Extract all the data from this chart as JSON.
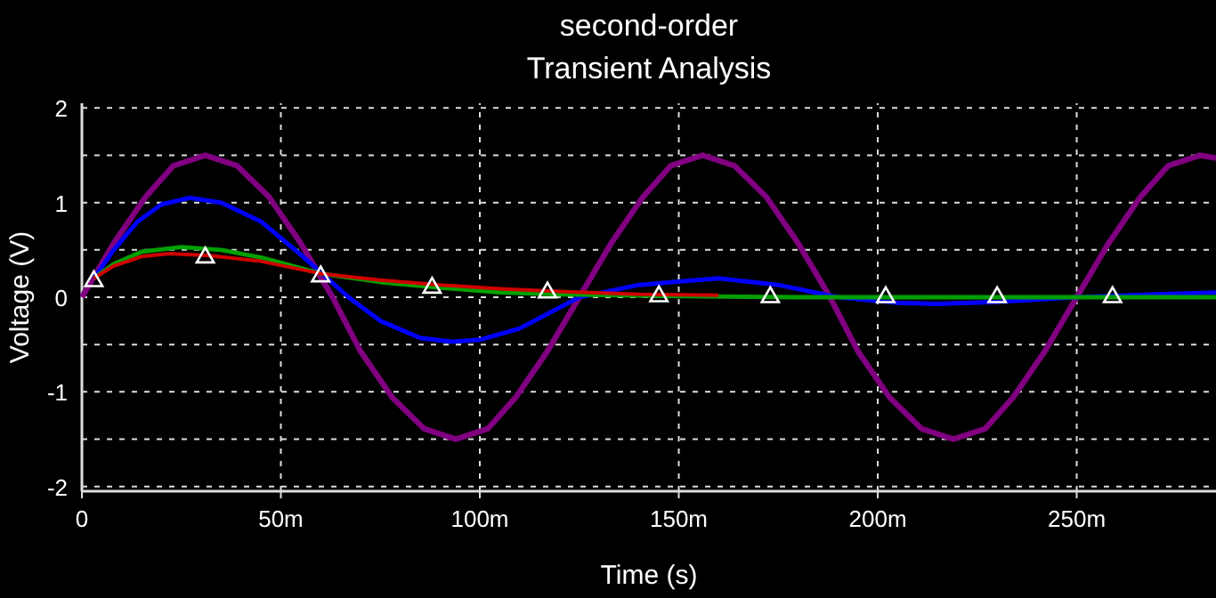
{
  "chart_data": {
    "type": "line",
    "title": "second-order",
    "subtitle": "Transient Analysis",
    "xlabel": "Time (s)",
    "ylabel": "Voltage (V)",
    "xlim": [
      0,
      285
    ],
    "xticks": [
      0,
      {
        "value": 50,
        "label": "50m"
      },
      {
        "value": 100,
        "label": "100m"
      },
      {
        "value": 150,
        "label": "150m"
      },
      {
        "value": 200,
        "label": "200m"
      },
      {
        "value": 250,
        "label": "250m"
      }
    ],
    "ylim": [
      -2.05,
      2.05
    ],
    "yticks": [
      -2,
      {
        "value": -1.5,
        "label": null
      },
      -1,
      {
        "value": -0.5,
        "label": null
      },
      0,
      {
        "value": 0.5,
        "label": null
      },
      1,
      {
        "value": 1.5,
        "label": null
      },
      2
    ],
    "grid": true,
    "line_style": "solid",
    "series": [
      {
        "color": "#800080",
        "x": [
          0,
          8,
          16,
          23,
          31,
          39,
          47,
          55,
          63,
          70,
          78,
          86,
          94,
          102,
          109,
          117,
          125,
          133,
          141,
          148,
          156,
          164,
          172,
          180,
          188,
          195,
          203,
          211,
          219,
          227,
          234,
          242,
          250,
          258,
          266,
          273,
          281,
          285
        ],
        "values": [
          0,
          0.57,
          1.06,
          1.39,
          1.5,
          1.39,
          1.06,
          0.57,
          0,
          -0.57,
          -1.06,
          -1.39,
          -1.5,
          -1.39,
          -1.06,
          -0.57,
          0,
          0.57,
          1.06,
          1.39,
          1.5,
          1.39,
          1.06,
          0.57,
          0,
          -0.57,
          -1.06,
          -1.39,
          -1.5,
          -1.39,
          -1.06,
          -0.57,
          0,
          0.57,
          1.06,
          1.39,
          1.5,
          1.47
        ]
      },
      {
        "color": "#0000ff",
        "x": [
          3,
          8,
          14,
          20,
          27,
          35,
          45,
          55,
          67,
          75,
          85,
          93,
          100,
          110,
          125,
          140,
          160,
          175,
          190,
          205,
          215,
          230,
          250,
          270,
          285
        ],
        "values": [
          0.2,
          0.5,
          0.8,
          0.98,
          1.05,
          1.0,
          0.8,
          0.45,
          0,
          -0.25,
          -0.43,
          -0.47,
          -0.45,
          -0.33,
          0,
          0.13,
          0.2,
          0.13,
          0,
          -0.06,
          -0.07,
          -0.05,
          0,
          0.03,
          0.05
        ]
      },
      {
        "color": "#00a000",
        "x": [
          3,
          8,
          15,
          25,
          35,
          45,
          60,
          75,
          90,
          105,
          120,
          150,
          180,
          285
        ],
        "values": [
          0.2,
          0.35,
          0.48,
          0.53,
          0.5,
          0.42,
          0.25,
          0.16,
          0.1,
          0.05,
          0.03,
          0.01,
          0,
          0
        ]
      },
      {
        "color": "#d00000",
        "x": [
          3,
          8,
          15,
          22,
          32,
          45,
          60,
          75,
          90,
          105,
          120,
          140,
          160
        ],
        "values": [
          0.2,
          0.33,
          0.43,
          0.46,
          0.44,
          0.38,
          0.25,
          0.18,
          0.13,
          0.09,
          0.06,
          0.03,
          0.02
        ]
      },
      {
        "type": "scatter",
        "marker": "triangle",
        "color": "#ffffff",
        "x": [
          3,
          31,
          60,
          88,
          117,
          145,
          173,
          202,
          230,
          259
        ],
        "values": [
          0.17,
          0.42,
          0.22,
          0.1,
          0.05,
          0.01,
          0,
          0,
          0,
          0
        ]
      }
    ]
  }
}
